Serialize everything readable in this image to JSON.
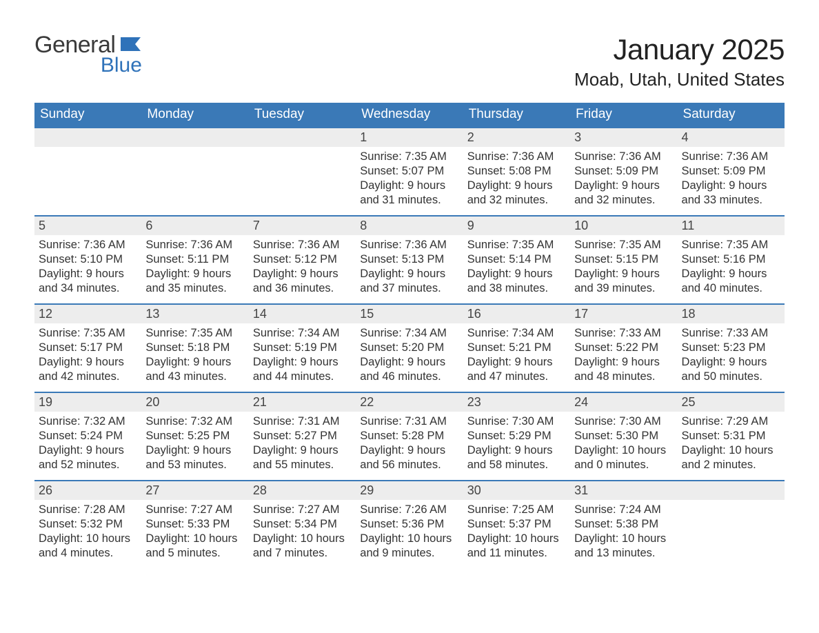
{
  "brand": {
    "word1": "General",
    "word2": "Blue",
    "flag_color": "#2f72b9"
  },
  "title": "January 2025",
  "location": "Moab, Utah, United States",
  "colors": {
    "header_bg": "#3a79b7",
    "header_text": "#ffffff",
    "daynum_bg": "#ededed",
    "row_border": "#3a79b7",
    "body_text": "#333333",
    "page_bg": "#ffffff"
  },
  "typography": {
    "title_fontsize": 42,
    "location_fontsize": 26,
    "th_fontsize": 19,
    "cell_fontsize": 16.5
  },
  "day_labels": [
    "Sunday",
    "Monday",
    "Tuesday",
    "Wednesday",
    "Thursday",
    "Friday",
    "Saturday"
  ],
  "weeks": [
    [
      null,
      null,
      null,
      {
        "n": "1",
        "sunrise": "Sunrise: 7:35 AM",
        "sunset": "Sunset: 5:07 PM",
        "day1": "Daylight: 9 hours",
        "day2": "and 31 minutes."
      },
      {
        "n": "2",
        "sunrise": "Sunrise: 7:36 AM",
        "sunset": "Sunset: 5:08 PM",
        "day1": "Daylight: 9 hours",
        "day2": "and 32 minutes."
      },
      {
        "n": "3",
        "sunrise": "Sunrise: 7:36 AM",
        "sunset": "Sunset: 5:09 PM",
        "day1": "Daylight: 9 hours",
        "day2": "and 32 minutes."
      },
      {
        "n": "4",
        "sunrise": "Sunrise: 7:36 AM",
        "sunset": "Sunset: 5:09 PM",
        "day1": "Daylight: 9 hours",
        "day2": "and 33 minutes."
      }
    ],
    [
      {
        "n": "5",
        "sunrise": "Sunrise: 7:36 AM",
        "sunset": "Sunset: 5:10 PM",
        "day1": "Daylight: 9 hours",
        "day2": "and 34 minutes."
      },
      {
        "n": "6",
        "sunrise": "Sunrise: 7:36 AM",
        "sunset": "Sunset: 5:11 PM",
        "day1": "Daylight: 9 hours",
        "day2": "and 35 minutes."
      },
      {
        "n": "7",
        "sunrise": "Sunrise: 7:36 AM",
        "sunset": "Sunset: 5:12 PM",
        "day1": "Daylight: 9 hours",
        "day2": "and 36 minutes."
      },
      {
        "n": "8",
        "sunrise": "Sunrise: 7:36 AM",
        "sunset": "Sunset: 5:13 PM",
        "day1": "Daylight: 9 hours",
        "day2": "and 37 minutes."
      },
      {
        "n": "9",
        "sunrise": "Sunrise: 7:35 AM",
        "sunset": "Sunset: 5:14 PM",
        "day1": "Daylight: 9 hours",
        "day2": "and 38 minutes."
      },
      {
        "n": "10",
        "sunrise": "Sunrise: 7:35 AM",
        "sunset": "Sunset: 5:15 PM",
        "day1": "Daylight: 9 hours",
        "day2": "and 39 minutes."
      },
      {
        "n": "11",
        "sunrise": "Sunrise: 7:35 AM",
        "sunset": "Sunset: 5:16 PM",
        "day1": "Daylight: 9 hours",
        "day2": "and 40 minutes."
      }
    ],
    [
      {
        "n": "12",
        "sunrise": "Sunrise: 7:35 AM",
        "sunset": "Sunset: 5:17 PM",
        "day1": "Daylight: 9 hours",
        "day2": "and 42 minutes."
      },
      {
        "n": "13",
        "sunrise": "Sunrise: 7:35 AM",
        "sunset": "Sunset: 5:18 PM",
        "day1": "Daylight: 9 hours",
        "day2": "and 43 minutes."
      },
      {
        "n": "14",
        "sunrise": "Sunrise: 7:34 AM",
        "sunset": "Sunset: 5:19 PM",
        "day1": "Daylight: 9 hours",
        "day2": "and 44 minutes."
      },
      {
        "n": "15",
        "sunrise": "Sunrise: 7:34 AM",
        "sunset": "Sunset: 5:20 PM",
        "day1": "Daylight: 9 hours",
        "day2": "and 46 minutes."
      },
      {
        "n": "16",
        "sunrise": "Sunrise: 7:34 AM",
        "sunset": "Sunset: 5:21 PM",
        "day1": "Daylight: 9 hours",
        "day2": "and 47 minutes."
      },
      {
        "n": "17",
        "sunrise": "Sunrise: 7:33 AM",
        "sunset": "Sunset: 5:22 PM",
        "day1": "Daylight: 9 hours",
        "day2": "and 48 minutes."
      },
      {
        "n": "18",
        "sunrise": "Sunrise: 7:33 AM",
        "sunset": "Sunset: 5:23 PM",
        "day1": "Daylight: 9 hours",
        "day2": "and 50 minutes."
      }
    ],
    [
      {
        "n": "19",
        "sunrise": "Sunrise: 7:32 AM",
        "sunset": "Sunset: 5:24 PM",
        "day1": "Daylight: 9 hours",
        "day2": "and 52 minutes."
      },
      {
        "n": "20",
        "sunrise": "Sunrise: 7:32 AM",
        "sunset": "Sunset: 5:25 PM",
        "day1": "Daylight: 9 hours",
        "day2": "and 53 minutes."
      },
      {
        "n": "21",
        "sunrise": "Sunrise: 7:31 AM",
        "sunset": "Sunset: 5:27 PM",
        "day1": "Daylight: 9 hours",
        "day2": "and 55 minutes."
      },
      {
        "n": "22",
        "sunrise": "Sunrise: 7:31 AM",
        "sunset": "Sunset: 5:28 PM",
        "day1": "Daylight: 9 hours",
        "day2": "and 56 minutes."
      },
      {
        "n": "23",
        "sunrise": "Sunrise: 7:30 AM",
        "sunset": "Sunset: 5:29 PM",
        "day1": "Daylight: 9 hours",
        "day2": "and 58 minutes."
      },
      {
        "n": "24",
        "sunrise": "Sunrise: 7:30 AM",
        "sunset": "Sunset: 5:30 PM",
        "day1": "Daylight: 10 hours",
        "day2": "and 0 minutes."
      },
      {
        "n": "25",
        "sunrise": "Sunrise: 7:29 AM",
        "sunset": "Sunset: 5:31 PM",
        "day1": "Daylight: 10 hours",
        "day2": "and 2 minutes."
      }
    ],
    [
      {
        "n": "26",
        "sunrise": "Sunrise: 7:28 AM",
        "sunset": "Sunset: 5:32 PM",
        "day1": "Daylight: 10 hours",
        "day2": "and 4 minutes."
      },
      {
        "n": "27",
        "sunrise": "Sunrise: 7:27 AM",
        "sunset": "Sunset: 5:33 PM",
        "day1": "Daylight: 10 hours",
        "day2": "and 5 minutes."
      },
      {
        "n": "28",
        "sunrise": "Sunrise: 7:27 AM",
        "sunset": "Sunset: 5:34 PM",
        "day1": "Daylight: 10 hours",
        "day2": "and 7 minutes."
      },
      {
        "n": "29",
        "sunrise": "Sunrise: 7:26 AM",
        "sunset": "Sunset: 5:36 PM",
        "day1": "Daylight: 10 hours",
        "day2": "and 9 minutes."
      },
      {
        "n": "30",
        "sunrise": "Sunrise: 7:25 AM",
        "sunset": "Sunset: 5:37 PM",
        "day1": "Daylight: 10 hours",
        "day2": "and 11 minutes."
      },
      {
        "n": "31",
        "sunrise": "Sunrise: 7:24 AM",
        "sunset": "Sunset: 5:38 PM",
        "day1": "Daylight: 10 hours",
        "day2": "and 13 minutes."
      },
      null
    ]
  ]
}
